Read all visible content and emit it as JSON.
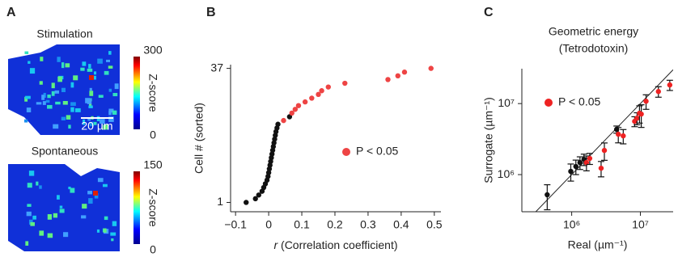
{
  "panel_a": {
    "label": "A",
    "scale_bar": "20 µm",
    "images": [
      {
        "title": "Stimulation",
        "colorbar_label": "Z-score",
        "colorbar_ticks": [
          300,
          0
        ]
      },
      {
        "title": "Spontaneous",
        "colorbar_label": "Z-score",
        "colorbar_ticks": [
          150,
          0
        ]
      }
    ]
  },
  "chart_data": [
    {
      "type": "scatter",
      "panel_label": "B",
      "y_label": "Cell # (sorted)",
      "x_label": {
        "symbol": "r",
        "text": "(Correlation coefficient)"
      },
      "xlim": [
        -0.115,
        0.52
      ],
      "ylim": [
        -1.5,
        38
      ],
      "xticks": [
        {
          "value": -0.1,
          "label": "−0.1"
        },
        0,
        0.1,
        0.2,
        0.3,
        0.4,
        0.5
      ],
      "yticks": [
        1,
        37
      ],
      "series": [
        {
          "color": "#111111",
          "x": [
            -0.068,
            -0.04,
            -0.03,
            -0.02,
            -0.015,
            -0.01,
            -0.005,
            -0.002,
            0.0,
            0.002,
            0.004,
            0.006,
            0.008,
            0.01,
            0.012,
            0.014,
            0.016,
            0.018,
            0.02,
            0.022,
            0.025,
            0.028,
            0.063
          ],
          "values": [
            1,
            2,
            3,
            4,
            5,
            6,
            7,
            8,
            9,
            10,
            11,
            12,
            13,
            14,
            15,
            16,
            17,
            18,
            19,
            20,
            21,
            22,
            24
          ]
        },
        {
          "name": "P < 0.05",
          "color": "#ee4444",
          "x": [
            0.045,
            0.07,
            0.08,
            0.09,
            0.11,
            0.13,
            0.15,
            0.16,
            0.18,
            0.23,
            0.36,
            0.39,
            0.41,
            0.49
          ],
          "values": [
            23,
            25,
            26,
            27,
            28,
            29,
            30,
            31,
            32,
            33,
            34,
            35,
            36,
            37
          ]
        }
      ]
    },
    {
      "type": "scatter",
      "panel_label": "C",
      "title": [
        "Geometric energy",
        "(Tetrodotoxin)"
      ],
      "y_label": "Surrogate (µm⁻¹)",
      "x_label": "Real (µm⁻¹)",
      "log_scale": true,
      "identity_line": true,
      "xlim": [
        188000,
        30000000
      ],
      "ylim": [
        300000,
        31000000
      ],
      "xticks": [
        {
          "value": 1000000,
          "label": "10⁶"
        },
        {
          "value": 10000000,
          "label": "10⁷"
        }
      ],
      "yticks": [
        {
          "value": 1000000,
          "label": "10⁶"
        },
        {
          "value": 10000000,
          "label": "10⁷"
        }
      ],
      "series": [
        {
          "color": "#111111",
          "x": [
            440000,
            970000,
            1150000,
            1320000,
            1510000,
            4510000
          ],
          "values": [
            520000,
            1110000,
            1300000,
            1480000,
            1640000,
            4330000
          ],
          "errors": [
            200000,
            300000,
            300000,
            300000,
            300000,
            500000
          ]
        },
        {
          "name": "P < 0.05",
          "color": "#ee2222",
          "x": [
            1640000,
            1830000,
            2680000,
            2990000,
            4770000,
            5630000,
            8250000,
            8940000,
            9700000,
            10300000,
            12100000,
            18300000,
            26800000
          ],
          "values": [
            1480000,
            1690000,
            1230000,
            2190000,
            3700000,
            3510000,
            5630000,
            6230000,
            7310000,
            7120000,
            10800000,
            14800000,
            18300000
          ],
          "errors": [
            350000,
            300000,
            300000,
            600000,
            900000,
            800000,
            900000,
            1200000,
            2000000,
            2500000,
            2500000,
            2500000,
            3000000
          ]
        }
      ]
    }
  ]
}
